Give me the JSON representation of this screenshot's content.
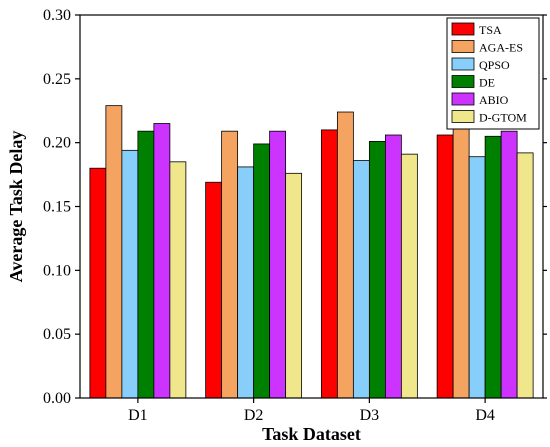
{
  "chart_data": {
    "type": "bar",
    "title": "",
    "xlabel": "Task Dataset",
    "ylabel": "Average Task Delay",
    "ylim": [
      0,
      0.3
    ],
    "yticks": [
      "0.00",
      "0.05",
      "0.10",
      "0.15",
      "0.20",
      "0.25",
      "0.30"
    ],
    "categories": [
      "D1",
      "D2",
      "D3",
      "D4"
    ],
    "legend_position": "top-right",
    "grid": false,
    "series": [
      {
        "name": "TSA",
        "color": "#ff0000",
        "values": [
          0.18,
          0.169,
          0.21,
          0.206
        ]
      },
      {
        "name": "AGA-ES",
        "color": "#f4a460",
        "values": [
          0.229,
          0.209,
          0.224,
          0.216
        ]
      },
      {
        "name": "QPSO",
        "color": "#87cefa",
        "values": [
          0.194,
          0.181,
          0.186,
          0.189
        ]
      },
      {
        "name": "DE",
        "color": "#008000",
        "values": [
          0.209,
          0.199,
          0.201,
          0.205
        ]
      },
      {
        "name": "ABIO",
        "color": "#cc33ff",
        "values": [
          0.215,
          0.209,
          0.206,
          0.209
        ]
      },
      {
        "name": "D-GTOM",
        "color": "#f0e68c",
        "values": [
          0.185,
          0.176,
          0.191,
          0.192
        ]
      }
    ]
  }
}
